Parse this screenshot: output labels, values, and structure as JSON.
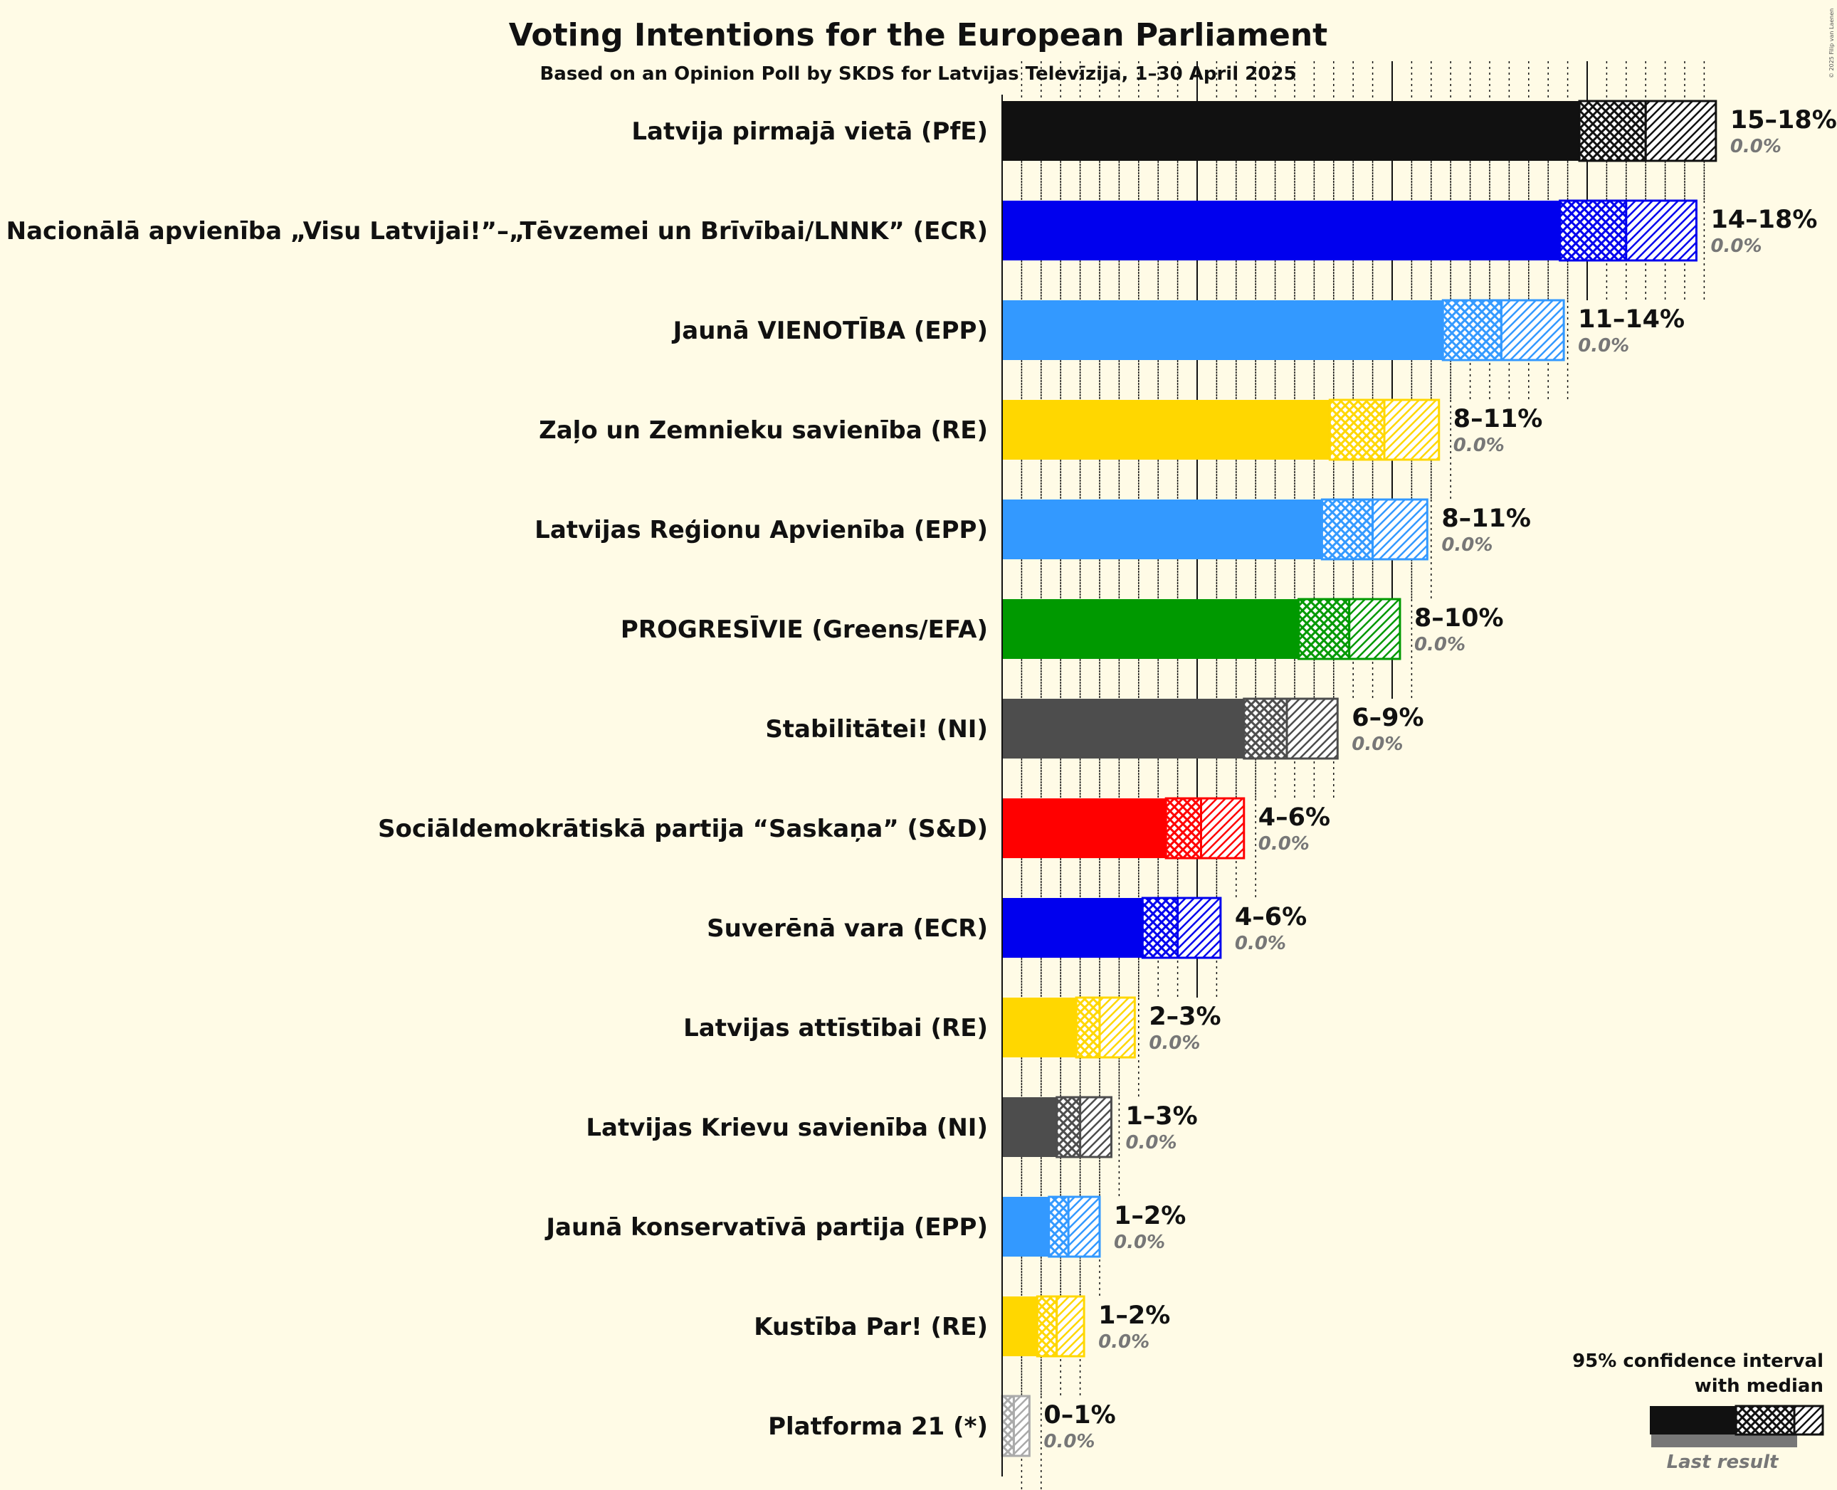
{
  "chart_data": {
    "type": "bar",
    "orientation": "horizontal",
    "title": "Voting Intentions for the European Parliament",
    "subtitle": "Based on an Opinion Poll by SKDS for Latvijas Televīzija, 1–30 April 2025",
    "copyright": "© 2025 Filip van Laenen",
    "xlim": [
      0,
      18.4
    ],
    "grid": true,
    "legend_position": "bottom-right",
    "legend": {
      "line1": "95% confidence interval",
      "line2": "with median",
      "last_result": "Last result"
    },
    "parties": [
      {
        "name": "Latvija pirmajā vietā (PfE)",
        "color": "#111111",
        "lo": 14.8,
        "median": 16.5,
        "hi": 18.3,
        "range_label": "15–18%",
        "last_label": "0.0%",
        "last": 0.0
      },
      {
        "name": "Nacionālā apvienība „Visu Latvijai!”–„Tēvzemei un Brīvībai/LNNK” (ECR)",
        "color": "#0000EE",
        "lo": 14.3,
        "median": 16.0,
        "hi": 17.8,
        "range_label": "14–18%",
        "last_label": "0.0%",
        "last": 0.0
      },
      {
        "name": "Jaunā VIENOTĪBA (EPP)",
        "color": "#3399FF",
        "lo": 11.3,
        "median": 12.8,
        "hi": 14.4,
        "range_label": "11–14%",
        "last_label": "0.0%",
        "last": 0.0
      },
      {
        "name": "Zaļo un Zemnieku savienība (RE)",
        "color": "#FFD700",
        "lo": 8.4,
        "median": 9.8,
        "hi": 11.2,
        "range_label": "8–11%",
        "last_label": "0.0%",
        "last": 0.0
      },
      {
        "name": "Latvijas Reģionu Apvienība (EPP)",
        "color": "#3399FF",
        "lo": 8.2,
        "median": 9.5,
        "hi": 10.9,
        "range_label": "8–11%",
        "last_label": "0.0%",
        "last": 0.0
      },
      {
        "name": "PROGRESĪVIE (Greens/EFA)",
        "color": "#009900",
        "lo": 7.6,
        "median": 8.9,
        "hi": 10.2,
        "range_label": "8–10%",
        "last_label": "0.0%",
        "last": 0.0
      },
      {
        "name": "Stabilitātei! (NI)",
        "color": "#4D4D4D",
        "lo": 6.2,
        "median": 7.3,
        "hi": 8.6,
        "range_label": "6–9%",
        "last_label": "0.0%",
        "last": 0.0
      },
      {
        "name": "Sociāldemokrātiskā partija “Saskaņa” (S&D)",
        "color": "#FF0000",
        "lo": 4.2,
        "median": 5.1,
        "hi": 6.2,
        "range_label": "4–6%",
        "last_label": "0.0%",
        "last": 0.0
      },
      {
        "name": "Suverēnā vara (ECR)",
        "color": "#0000EE",
        "lo": 3.6,
        "median": 4.5,
        "hi": 5.6,
        "range_label": "4–6%",
        "last_label": "0.0%",
        "last": 0.0
      },
      {
        "name": "Latvijas attīstībai (RE)",
        "color": "#FFD700",
        "lo": 1.9,
        "median": 2.5,
        "hi": 3.4,
        "range_label": "2–3%",
        "last_label": "0.0%",
        "last": 0.0
      },
      {
        "name": "Latvijas Krievu savienība (NI)",
        "color": "#4D4D4D",
        "lo": 1.4,
        "median": 2.0,
        "hi": 2.8,
        "range_label": "1–3%",
        "last_label": "0.0%",
        "last": 0.0
      },
      {
        "name": "Jaunā konservatīvā partija (EPP)",
        "color": "#3399FF",
        "lo": 1.2,
        "median": 1.7,
        "hi": 2.5,
        "range_label": "1–2%",
        "last_label": "0.0%",
        "last": 0.0
      },
      {
        "name": "Kustība Par! (RE)",
        "color": "#FFD700",
        "lo": 0.9,
        "median": 1.4,
        "hi": 2.1,
        "range_label": "1–2%",
        "last_label": "0.0%",
        "last": 0.0
      },
      {
        "name": "Platforma 21 (*)",
        "color": "#AAAAAA",
        "lo": 0.0,
        "median": 0.3,
        "hi": 0.7,
        "range_label": "0–1%",
        "last_label": "0.0%",
        "last": 0.0
      }
    ]
  }
}
